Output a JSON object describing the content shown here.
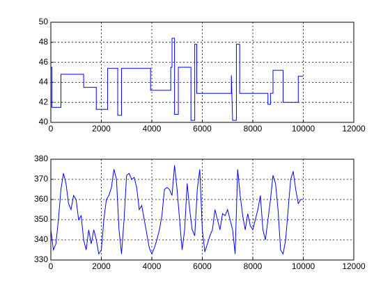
{
  "chart_data": [
    {
      "type": "line",
      "x": [
        0,
        40,
        40,
        400,
        400,
        1300,
        1300,
        1800,
        1800,
        2250,
        2250,
        2650,
        2650,
        2800,
        2800,
        3950,
        3950,
        4750,
        4750,
        4800,
        4800,
        4900,
        4900,
        5050,
        5050,
        5550,
        5550,
        5700,
        5700,
        5780,
        5780,
        7150,
        7150,
        7200,
        7350,
        7350,
        7480,
        7480,
        8600,
        8600,
        8700,
        8700,
        8800,
        8800,
        9200,
        9200,
        9800,
        9800,
        10000
      ],
      "series": [
        {
          "color": "#0000ff",
          "values": [
            45.5,
            45.5,
            41.5,
            41.5,
            44.8,
            44.8,
            43.5,
            43.5,
            41.3,
            41.3,
            45.4,
            45.4,
            40.7,
            40.7,
            45.4,
            45.4,
            43.2,
            43.2,
            45.5,
            45.5,
            48.4,
            48.4,
            40.8,
            40.8,
            45.5,
            45.5,
            40.2,
            40.2,
            47.8,
            47.8,
            42.9,
            42.9,
            44.7,
            40.2,
            40.2,
            47.8,
            47.8,
            42.9,
            42.9,
            41.8,
            41.8,
            42.9,
            42.9,
            45.2,
            45.2,
            42.0,
            42.0,
            44.6,
            44.6
          ]
        }
      ],
      "xlim": [
        0,
        12000
      ],
      "ylim": [
        40,
        50
      ],
      "xticks": [
        0,
        2000,
        4000,
        6000,
        8000,
        10000,
        12000
      ],
      "yticks": [
        40,
        42,
        44,
        46,
        48,
        50
      ],
      "grid": true
    },
    {
      "type": "line",
      "x": [
        0,
        100,
        200,
        300,
        400,
        500,
        600,
        700,
        800,
        900,
        1000,
        1100,
        1200,
        1300,
        1400,
        1500,
        1600,
        1700,
        1800,
        1900,
        2000,
        2100,
        2200,
        2300,
        2400,
        2500,
        2600,
        2700,
        2800,
        2900,
        3000,
        3100,
        3200,
        3300,
        3400,
        3500,
        3600,
        3700,
        3800,
        3900,
        4000,
        4100,
        4200,
        4300,
        4400,
        4500,
        4600,
        4700,
        4800,
        4900,
        5000,
        5100,
        5200,
        5300,
        5400,
        5500,
        5600,
        5700,
        5800,
        5900,
        6000,
        6100,
        6200,
        6300,
        6400,
        6500,
        6600,
        6700,
        6800,
        6900,
        7000,
        7100,
        7200,
        7300,
        7400,
        7500,
        7600,
        7700,
        7800,
        7900,
        8000,
        8100,
        8200,
        8300,
        8400,
        8500,
        8600,
        8700,
        8800,
        8900,
        9000,
        9100,
        9200,
        9300,
        9400,
        9500,
        9600,
        9700,
        9800,
        9900,
        10000
      ],
      "series": [
        {
          "color": "#0000ff",
          "values": [
            345,
            335,
            338,
            350,
            365,
            373,
            368,
            358,
            355,
            362,
            360,
            350,
            352,
            340,
            335,
            345,
            338,
            345,
            340,
            333,
            335,
            350,
            360,
            362,
            366,
            375,
            370,
            345,
            333,
            350,
            372,
            373,
            370,
            371,
            366,
            355,
            357,
            350,
            343,
            336,
            333,
            336,
            340,
            345,
            352,
            365,
            366,
            365,
            362,
            377,
            365,
            350,
            335,
            345,
            368,
            355,
            345,
            342,
            365,
            375,
            345,
            334,
            338,
            342,
            345,
            355,
            350,
            345,
            353,
            352,
            355,
            350,
            345,
            333,
            375,
            362,
            352,
            345,
            353,
            347,
            345,
            350,
            355,
            362,
            345,
            340,
            350,
            360,
            372,
            368,
            355,
            335,
            333,
            340,
            355,
            370,
            374,
            365,
            358,
            360,
            360
          ]
        }
      ],
      "xlim": [
        0,
        12000
      ],
      "ylim": [
        330,
        380
      ],
      "xticks": [
        0,
        2000,
        4000,
        6000,
        8000,
        10000,
        12000
      ],
      "yticks": [
        330,
        340,
        350,
        360,
        370,
        380
      ],
      "grid": true
    }
  ]
}
